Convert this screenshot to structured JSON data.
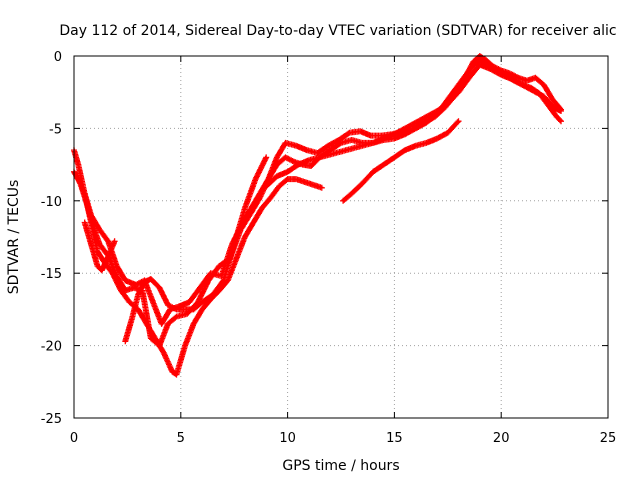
{
  "chart_data": {
    "type": "scatter",
    "title": "Day 112 of 2014, Sidereal Day-to-day VTEC variation (SDTVAR) for receiver alic",
    "xlabel": "GPS time / hours",
    "ylabel": "SDTVAR / TECUs",
    "xlim": [
      0,
      25
    ],
    "ylim": [
      -25,
      0
    ],
    "xticks": [
      0,
      5,
      10,
      15,
      20,
      25
    ],
    "yticks": [
      0,
      -5,
      -10,
      -15,
      -20,
      -25
    ],
    "grid": true,
    "marker": "plus",
    "color": "#ff0000",
    "series": [
      {
        "x": [
          0,
          0.2,
          0.5,
          0.8,
          1.2,
          1.6,
          2.0,
          2.4,
          2.9,
          3.3,
          3.7,
          4.1,
          4.5,
          4.9,
          5.4,
          5.9,
          6.4,
          6.9,
          7.4,
          7.9,
          8.3,
          8.7,
          9.1,
          9.5,
          9.9,
          10.4,
          10.9,
          11.4,
          11.9,
          12.4,
          12.9,
          13.4,
          13.9,
          14.4,
          14.9,
          15.4,
          15.9,
          16.4,
          16.9,
          17.4,
          17.9,
          18.3,
          18.7,
          19.0,
          19.3,
          19.6,
          20.0,
          20.4,
          20.8,
          21.2,
          21.6,
          22.0,
          22.4,
          22.8
        ],
        "y": [
          -6.5,
          -7.5,
          -9.5,
          -11.0,
          -12.0,
          -12.8,
          -14.5,
          -15.5,
          -15.8,
          -15.5,
          -17.0,
          -18.5,
          -17.5,
          -17.3,
          -17.0,
          -16.0,
          -15.0,
          -15.2,
          -13.0,
          -11.5,
          -10.5,
          -9.5,
          -8.5,
          -7.0,
          -6.0,
          -6.2,
          -6.5,
          -6.7,
          -6.2,
          -5.8,
          -5.3,
          -5.2,
          -5.5,
          -5.5,
          -5.4,
          -5.2,
          -5.0,
          -4.6,
          -4.2,
          -3.5,
          -2.5,
          -1.5,
          -0.4,
          0.0,
          -0.3,
          -0.7,
          -1.0,
          -1.2,
          -1.5,
          -1.7,
          -1.5,
          -2.0,
          -3.0,
          -3.7
        ]
      },
      {
        "x": [
          0,
          0.3,
          0.6,
          0.9,
          1.2,
          1.6,
          2.0,
          2.4,
          2.8,
          3.2,
          3.6,
          4.0,
          4.4,
          4.8,
          5.3,
          5.8,
          6.3,
          6.8,
          7.3,
          7.8,
          8.3,
          8.7,
          9.1,
          9.5,
          9.9,
          10.3,
          10.7,
          11.1,
          11.5,
          12.0,
          12.5,
          13.0,
          13.5,
          14.0,
          14.5,
          15.0,
          15.5,
          16.0,
          16.5,
          17.0,
          17.5,
          18.0,
          18.4,
          18.8,
          19.1,
          19.4,
          19.8,
          20.2,
          20.6,
          21.0,
          21.4,
          21.8,
          22.2,
          22.6,
          22.8
        ],
        "y": [
          -8.0,
          -8.8,
          -10.2,
          -11.8,
          -13.0,
          -13.8,
          -15.2,
          -16.2,
          -16.0,
          -16.2,
          -19.5,
          -20.0,
          -18.5,
          -18.0,
          -17.8,
          -17.0,
          -15.5,
          -14.5,
          -14.0,
          -12.0,
          -10.8,
          -9.8,
          -8.5,
          -7.5,
          -7.0,
          -7.3,
          -7.5,
          -7.6,
          -7.0,
          -6.5,
          -6.0,
          -5.8,
          -6.0,
          -6.0,
          -5.8,
          -5.7,
          -5.4,
          -5.0,
          -4.6,
          -4.0,
          -3.0,
          -2.0,
          -1.2,
          -0.5,
          -0.3,
          -0.6,
          -1.0,
          -1.3,
          -1.7,
          -2.0,
          -2.2,
          -2.6,
          -3.4,
          -4.2,
          -4.5
        ]
      },
      {
        "x": [
          0.2,
          0.5,
          0.8,
          1.1,
          1.4,
          1.8,
          2.2,
          2.6,
          3.0,
          3.4,
          3.8,
          4.2,
          4.6,
          4.8,
          5.2,
          5.6,
          6.0,
          6.4,
          6.8,
          7.2,
          7.6,
          8.0,
          8.4,
          8.8,
          9.2,
          9.6,
          10.0,
          10.4,
          10.8,
          11.2,
          11.6
        ],
        "y": [
          -8.5,
          -9.5,
          -11.5,
          -13.5,
          -14.2,
          -15.0,
          -16.2,
          -17.0,
          -17.5,
          -18.5,
          -19.5,
          -20.5,
          -21.8,
          -22.0,
          -20.0,
          -18.5,
          -17.5,
          -16.8,
          -16.2,
          -15.5,
          -14.0,
          -12.5,
          -11.5,
          -10.5,
          -9.8,
          -9.0,
          -8.5,
          -8.5,
          -8.7,
          -8.9,
          -9.1
        ]
      },
      {
        "x": [
          2.4,
          2.7,
          3.0,
          3.3,
          3.6,
          4.0,
          4.4,
          4.8,
          5.2,
          5.6,
          6.0,
          6.5,
          7.0,
          7.5,
          8.0,
          8.5,
          9.0
        ],
        "y": [
          -19.7,
          -18.2,
          -16.5,
          -15.6,
          -15.4,
          -16.0,
          -17.2,
          -17.5,
          -17.5,
          -17.5,
          -17.0,
          -16.5,
          -15.5,
          -13.0,
          -10.5,
          -8.5,
          -7.0
        ]
      },
      {
        "x": [
          12.6,
          13.0,
          13.5,
          14.0,
          14.5,
          15.0,
          15.5,
          16.0,
          16.5,
          17.0,
          17.5,
          18.0
        ],
        "y": [
          -10.0,
          -9.5,
          -8.8,
          -8.0,
          -7.5,
          -7.0,
          -6.5,
          -6.2,
          -6.0,
          -5.7,
          -5.3,
          -4.5
        ]
      },
      {
        "x": [
          9.0,
          9.5,
          10.0,
          10.5,
          11.0,
          11.5,
          12.0,
          12.5,
          13.0,
          13.5,
          14.0,
          14.5,
          15.0,
          15.5,
          16.0,
          16.5,
          17.0,
          17.5,
          18.0,
          18.5,
          19.0,
          19.5,
          20.0,
          20.5,
          21.0,
          21.5,
          22.0,
          22.5,
          22.8
        ],
        "y": [
          -9.0,
          -8.3,
          -8.0,
          -7.5,
          -7.2,
          -7.0,
          -6.8,
          -6.6,
          -6.4,
          -6.2,
          -6.0,
          -5.7,
          -5.4,
          -5.0,
          -4.6,
          -4.2,
          -3.8,
          -3.3,
          -2.5,
          -1.5,
          -0.6,
          -0.9,
          -1.3,
          -1.6,
          -2.0,
          -2.4,
          -2.8,
          -3.6,
          -3.8
        ]
      },
      {
        "x": [
          0.5,
          0.7,
          0.9,
          1.1,
          1.3,
          1.5,
          1.7,
          1.9
        ],
        "y": [
          -11.5,
          -12.5,
          -13.5,
          -14.5,
          -14.8,
          -14.2,
          -13.5,
          -12.8
        ]
      }
    ]
  }
}
